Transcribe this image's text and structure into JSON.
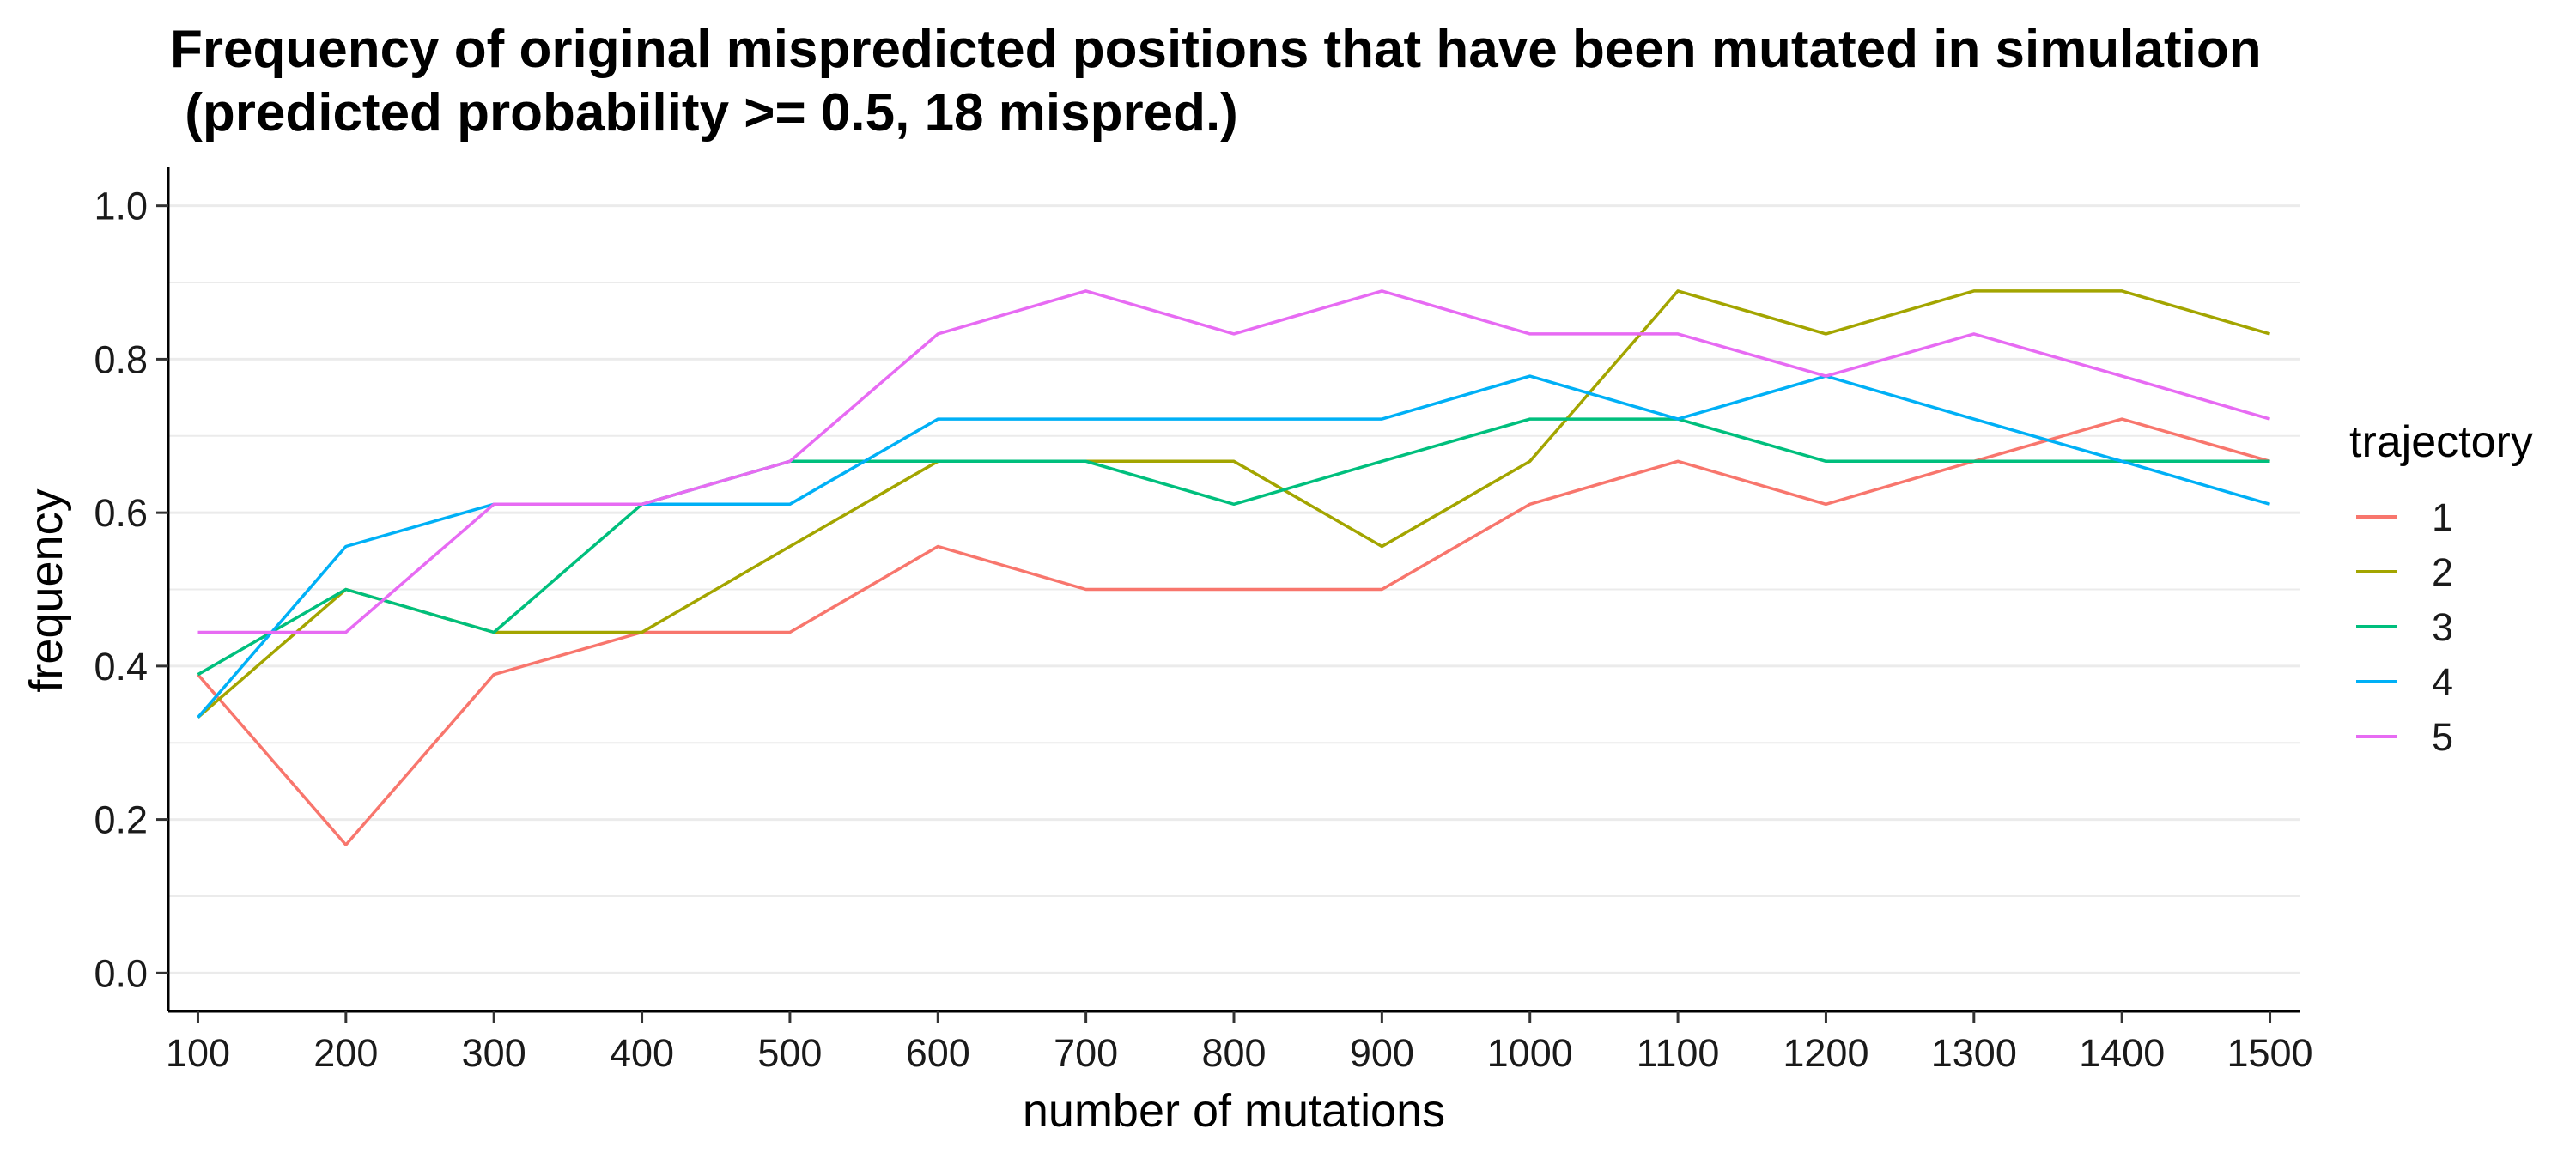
{
  "chart_data": {
    "type": "line",
    "title_line1": "Frequency of original mispredicted positions that have been mutated in simulation",
    "title_line2": " (predicted probability >= 0.5, 18 mispred.)",
    "xlabel": "number of mutations",
    "ylabel": "frequency",
    "x": [
      100,
      200,
      300,
      400,
      500,
      600,
      700,
      800,
      900,
      1000,
      1100,
      1200,
      1300,
      1400,
      1500
    ],
    "x_tick_labels": [
      "100",
      "200",
      "300",
      "400",
      "500",
      "600",
      "700",
      "800",
      "900",
      "1000",
      "1100",
      "1200",
      "1300",
      "1400",
      "1500"
    ],
    "y_ticks": [
      0.0,
      0.2,
      0.4,
      0.6,
      0.8,
      1.0
    ],
    "y_tick_labels": [
      "0.0",
      "0.2",
      "0.4",
      "0.6",
      "0.8",
      "1.0"
    ],
    "xlim": [
      80,
      1520
    ],
    "ylim": [
      -0.05,
      1.05
    ],
    "grid": "horizontal",
    "legend": {
      "title": "trajectory",
      "placement": "right"
    },
    "series": [
      {
        "name": "1",
        "color": "#F8766D",
        "values": [
          0.389,
          0.167,
          0.389,
          0.444,
          0.444,
          0.556,
          0.5,
          0.5,
          0.5,
          0.611,
          0.667,
          0.611,
          0.667,
          0.722,
          0.667
        ]
      },
      {
        "name": "2",
        "color": "#A3A500",
        "values": [
          0.333,
          0.5,
          0.444,
          0.444,
          0.556,
          0.667,
          0.667,
          0.667,
          0.556,
          0.667,
          0.889,
          0.833,
          0.889,
          0.889,
          0.833
        ]
      },
      {
        "name": "3",
        "color": "#00BF7D",
        "values": [
          0.389,
          0.5,
          0.444,
          0.611,
          0.667,
          0.667,
          0.667,
          0.611,
          0.667,
          0.722,
          0.722,
          0.667,
          0.667,
          0.667,
          0.667
        ]
      },
      {
        "name": "4",
        "color": "#00B0F6",
        "values": [
          0.333,
          0.556,
          0.611,
          0.611,
          0.611,
          0.722,
          0.722,
          0.722,
          0.722,
          0.778,
          0.722,
          0.778,
          0.722,
          0.667,
          0.611
        ]
      },
      {
        "name": "5",
        "color": "#E76BF3",
        "values": [
          0.444,
          0.444,
          0.611,
          0.611,
          0.667,
          0.833,
          0.889,
          0.833,
          0.889,
          0.833,
          0.833,
          0.778,
          0.833,
          0.778,
          0.722
        ]
      }
    ]
  }
}
